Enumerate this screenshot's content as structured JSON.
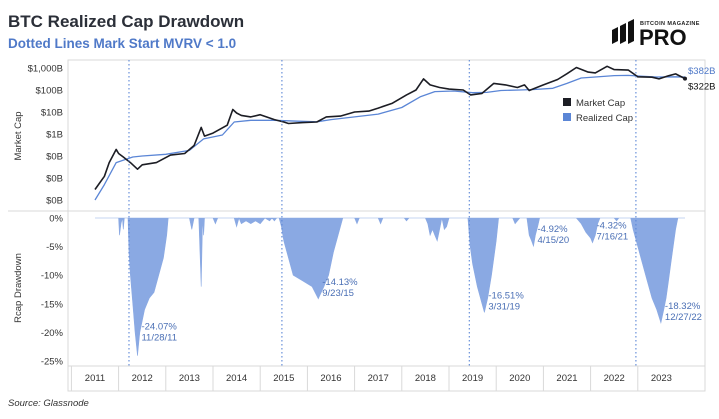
{
  "title": "BTC Realized Cap Drawdown",
  "subtitle": "Dotted Lines Mark Start MVRV < 1.0",
  "source": "Source: Glassnode",
  "logo": {
    "top": "BITCOIN MAGAZINE",
    "main": "PRO"
  },
  "colors": {
    "market_cap": "#1c1d24",
    "realized_cap": "#5b86d6",
    "drawdown_fill": "#8aa9e3",
    "marker_line": "#5b86d6",
    "annotation": "#4a6fb5"
  },
  "chart_data": [
    {
      "type": "line",
      "ylabel": "Market Cap",
      "yscale": "log",
      "yticks": [
        "$0B",
        "$0B",
        "$0B",
        "$1B",
        "$10B",
        "$100B",
        "$1,000B"
      ],
      "legend": {
        "placement": "right",
        "entries": [
          "Market Cap",
          "Realized Cap"
        ]
      },
      "end_labels": {
        "realized_cap": "$382B",
        "market_cap": "$322B"
      },
      "series": [
        {
          "name": "Market Cap",
          "points": [
            [
              2011.0,
              0.003
            ],
            [
              2011.1,
              0.006
            ],
            [
              2011.2,
              0.012
            ],
            [
              2011.3,
              0.05
            ],
            [
              2011.45,
              0.2
            ],
            [
              2011.5,
              0.13
            ],
            [
              2011.6,
              0.09
            ],
            [
              2011.75,
              0.05
            ],
            [
              2011.9,
              0.025
            ],
            [
              2012.0,
              0.04
            ],
            [
              2012.3,
              0.05
            ],
            [
              2012.6,
              0.11
            ],
            [
              2012.9,
              0.13
            ],
            [
              2013.1,
              0.3
            ],
            [
              2013.25,
              2.0
            ],
            [
              2013.32,
              0.8
            ],
            [
              2013.5,
              1.1
            ],
            [
              2013.8,
              2.5
            ],
            [
              2013.92,
              13
            ],
            [
              2014.0,
              9
            ],
            [
              2014.1,
              7
            ],
            [
              2014.3,
              6
            ],
            [
              2014.5,
              7.5
            ],
            [
              2014.8,
              4.5
            ],
            [
              2015.0,
              3.5
            ],
            [
              2015.1,
              3.0
            ],
            [
              2015.4,
              3.3
            ],
            [
              2015.7,
              3.5
            ],
            [
              2015.9,
              6
            ],
            [
              2016.2,
              6.5
            ],
            [
              2016.5,
              10
            ],
            [
              2016.8,
              11
            ],
            [
              2017.0,
              15
            ],
            [
              2017.3,
              25
            ],
            [
              2017.6,
              60
            ],
            [
              2017.8,
              100
            ],
            [
              2017.96,
              320
            ],
            [
              2018.1,
              170
            ],
            [
              2018.3,
              130
            ],
            [
              2018.5,
              110
            ],
            [
              2018.8,
              100
            ],
            [
              2018.96,
              60
            ],
            [
              2019.2,
              70
            ],
            [
              2019.45,
              200
            ],
            [
              2019.7,
              170
            ],
            [
              2019.95,
              130
            ],
            [
              2020.1,
              170
            ],
            [
              2020.2,
              95
            ],
            [
              2020.5,
              170
            ],
            [
              2020.8,
              300
            ],
            [
              2021.0,
              550
            ],
            [
              2021.2,
              1050
            ],
            [
              2021.45,
              650
            ],
            [
              2021.6,
              600
            ],
            [
              2021.85,
              1200
            ],
            [
              2022.0,
              850
            ],
            [
              2022.3,
              800
            ],
            [
              2022.5,
              400
            ],
            [
              2022.8,
              380
            ],
            [
              2022.95,
              320
            ],
            [
              2023.15,
              440
            ],
            [
              2023.3,
              540
            ],
            [
              2023.5,
              330
            ]
          ]
        },
        {
          "name": "Realized Cap",
          "points": [
            [
              2011.0,
              0.001
            ],
            [
              2011.2,
              0.005
            ],
            [
              2011.45,
              0.05
            ],
            [
              2011.8,
              0.09
            ],
            [
              2012.0,
              0.1
            ],
            [
              2012.5,
              0.12
            ],
            [
              2013.0,
              0.18
            ],
            [
              2013.3,
              0.6
            ],
            [
              2013.7,
              0.9
            ],
            [
              2013.95,
              3.5
            ],
            [
              2014.3,
              4.2
            ],
            [
              2014.8,
              4.2
            ],
            [
              2015.3,
              3.8
            ],
            [
              2015.7,
              3.6
            ],
            [
              2016.0,
              4.5
            ],
            [
              2016.5,
              6
            ],
            [
              2017.0,
              8
            ],
            [
              2017.5,
              16
            ],
            [
              2017.9,
              50
            ],
            [
              2018.2,
              85
            ],
            [
              2018.6,
              90
            ],
            [
              2019.0,
              75
            ],
            [
              2019.3,
              78
            ],
            [
              2019.6,
              95
            ],
            [
              2020.0,
              100
            ],
            [
              2020.3,
              105
            ],
            [
              2020.7,
              120
            ],
            [
              2021.0,
              200
            ],
            [
              2021.3,
              350
            ],
            [
              2021.6,
              390
            ],
            [
              2022.0,
              450
            ],
            [
              2022.3,
              460
            ],
            [
              2022.6,
              420
            ],
            [
              2022.9,
              390
            ],
            [
              2023.3,
              400
            ],
            [
              2023.5,
              390
            ]
          ]
        }
      ]
    },
    {
      "type": "area",
      "ylabel": "Rcap Drawdown",
      "ylim": [
        -25,
        0
      ],
      "yticks": [
        "0%",
        "-5%",
        "-10%",
        "-15%",
        "-20%",
        "-25%"
      ],
      "xticks": [
        "2011",
        "2012",
        "2013",
        "2014",
        "2015",
        "2016",
        "2017",
        "2018",
        "2019",
        "2020",
        "2021",
        "2022",
        "2023"
      ],
      "drawdown": [
        [
          2011.0,
          0
        ],
        [
          2011.5,
          0
        ],
        [
          2011.52,
          -3
        ],
        [
          2011.55,
          -1
        ],
        [
          2011.58,
          0
        ],
        [
          2011.6,
          -2
        ],
        [
          2011.62,
          0
        ],
        [
          2011.7,
          0
        ],
        [
          2011.72,
          -6
        ],
        [
          2011.75,
          -10
        ],
        [
          2011.8,
          -15
        ],
        [
          2011.85,
          -20
        ],
        [
          2011.9,
          -24.07
        ],
        [
          2011.95,
          -20
        ],
        [
          2012.05,
          -16
        ],
        [
          2012.15,
          -14
        ],
        [
          2012.25,
          -13
        ],
        [
          2012.35,
          -10
        ],
        [
          2012.45,
          -7
        ],
        [
          2012.52,
          -3
        ],
        [
          2012.55,
          0
        ],
        [
          2013.0,
          0
        ],
        [
          2013.05,
          -2
        ],
        [
          2013.1,
          0
        ],
        [
          2013.2,
          0
        ],
        [
          2013.25,
          -12
        ],
        [
          2013.28,
          0
        ],
        [
          2013.3,
          -3
        ],
        [
          2013.32,
          0
        ],
        [
          2013.5,
          0
        ],
        [
          2013.55,
          -1
        ],
        [
          2013.6,
          0
        ],
        [
          2013.95,
          0
        ],
        [
          2014.0,
          -1.5
        ],
        [
          2014.05,
          0
        ],
        [
          2014.1,
          -1
        ],
        [
          2014.2,
          -0.5
        ],
        [
          2014.3,
          -1
        ],
        [
          2014.4,
          -0.5
        ],
        [
          2014.5,
          -1
        ],
        [
          2014.6,
          0
        ],
        [
          2014.7,
          -0.5
        ],
        [
          2014.75,
          0
        ],
        [
          2014.8,
          -0.5
        ],
        [
          2014.85,
          0
        ],
        [
          2014.9,
          0
        ],
        [
          2014.95,
          -1.5
        ],
        [
          2015.0,
          -4
        ],
        [
          2015.1,
          -7
        ],
        [
          2015.2,
          -10
        ],
        [
          2015.4,
          -11
        ],
        [
          2015.6,
          -12
        ],
        [
          2015.73,
          -14.13
        ],
        [
          2015.85,
          -12
        ],
        [
          2015.95,
          -10
        ],
        [
          2016.05,
          -6
        ],
        [
          2016.15,
          -3
        ],
        [
          2016.25,
          0
        ],
        [
          2016.5,
          0
        ],
        [
          2016.55,
          -1
        ],
        [
          2016.6,
          0
        ],
        [
          2017.0,
          0
        ],
        [
          2017.05,
          -1
        ],
        [
          2017.1,
          0
        ],
        [
          2017.55,
          0
        ],
        [
          2017.6,
          -0.5
        ],
        [
          2017.65,
          0
        ],
        [
          2018.0,
          0
        ],
        [
          2018.05,
          -1
        ],
        [
          2018.1,
          -3
        ],
        [
          2018.15,
          -2
        ],
        [
          2018.2,
          -3
        ],
        [
          2018.25,
          -4
        ],
        [
          2018.3,
          -2
        ],
        [
          2018.35,
          0
        ],
        [
          2018.4,
          -2
        ],
        [
          2018.45,
          -1.5
        ],
        [
          2018.5,
          0
        ],
        [
          2018.9,
          0
        ],
        [
          2018.95,
          -5
        ],
        [
          2019.0,
          -8
        ],
        [
          2019.1,
          -12
        ],
        [
          2019.2,
          -15
        ],
        [
          2019.25,
          -16.51
        ],
        [
          2019.32,
          -14
        ],
        [
          2019.4,
          -10
        ],
        [
          2019.5,
          -4
        ],
        [
          2019.55,
          0
        ],
        [
          2019.85,
          0
        ],
        [
          2019.9,
          -1
        ],
        [
          2019.95,
          -0.5
        ],
        [
          2020.0,
          0
        ],
        [
          2020.15,
          0
        ],
        [
          2020.2,
          -3
        ],
        [
          2020.25,
          -4
        ],
        [
          2020.29,
          -4.92
        ],
        [
          2020.33,
          -3
        ],
        [
          2020.38,
          -1.5
        ],
        [
          2020.42,
          0
        ],
        [
          2021.2,
          0
        ],
        [
          2021.3,
          -1
        ],
        [
          2021.4,
          -2.5
        ],
        [
          2021.5,
          -3.5
        ],
        [
          2021.54,
          -4.32
        ],
        [
          2021.6,
          -3
        ],
        [
          2021.65,
          -1
        ],
        [
          2021.7,
          0
        ],
        [
          2022.0,
          0
        ],
        [
          2022.05,
          -0.5
        ],
        [
          2022.1,
          0
        ],
        [
          2022.35,
          0
        ],
        [
          2022.4,
          -2
        ],
        [
          2022.5,
          -5
        ],
        [
          2022.6,
          -8
        ],
        [
          2022.7,
          -11
        ],
        [
          2022.8,
          -14
        ],
        [
          2022.9,
          -16
        ],
        [
          2022.99,
          -18.32
        ],
        [
          2023.05,
          -16
        ],
        [
          2023.1,
          -14
        ],
        [
          2023.15,
          -11
        ],
        [
          2023.2,
          -8
        ],
        [
          2023.25,
          -5
        ],
        [
          2023.3,
          -2
        ],
        [
          2023.35,
          0
        ],
        [
          2023.5,
          0
        ]
      ],
      "markers": [
        2011.72,
        2014.96,
        2018.93,
        2022.46
      ],
      "annotations": [
        {
          "pct": "-24.07%",
          "date": "11/28/11",
          "x": 2011.9,
          "y": -24.07
        },
        {
          "pct": "-14.13%",
          "date": "9/23/15",
          "x": 2015.73,
          "y": -14.13
        },
        {
          "pct": "-16.51%",
          "date": "3/31/19",
          "x": 2019.25,
          "y": -16.51
        },
        {
          "pct": "-4.92%",
          "date": "4/15/20",
          "x": 2020.29,
          "y": -4.92
        },
        {
          "pct": "-4.32%",
          "date": "7/16/21",
          "x": 2021.54,
          "y": -4.32
        },
        {
          "pct": "-18.32%",
          "date": "12/27/22",
          "x": 2022.99,
          "y": -18.32
        }
      ]
    }
  ]
}
